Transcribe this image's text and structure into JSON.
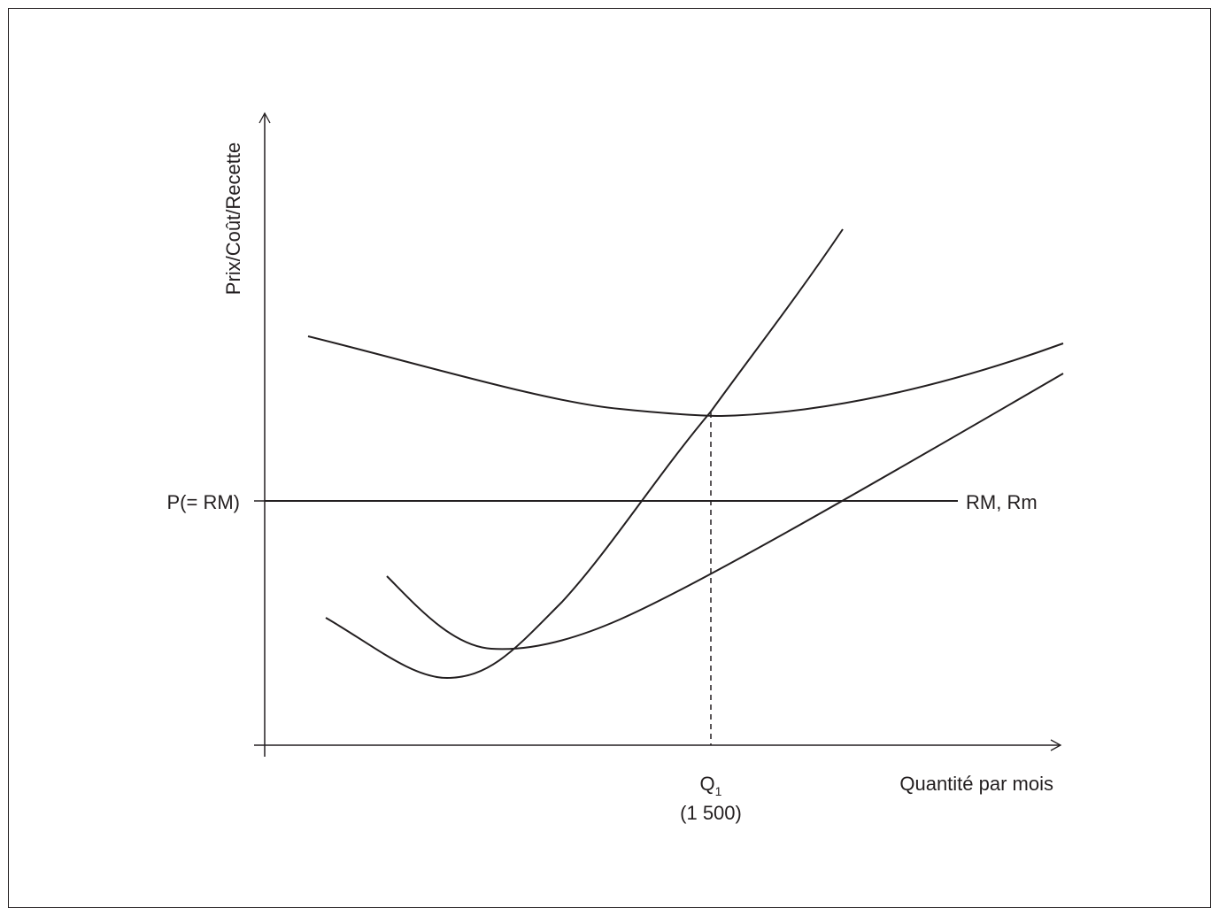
{
  "labels": {
    "y_axis": "Prix/Coût/Recette",
    "x_axis": "Quantité par mois",
    "price_level": "P(= RM)",
    "revenue_line": "RM, Rm",
    "q_letter": "Q",
    "q_subscript": "1",
    "q_value": "(1 500)"
  },
  "colors": {
    "ink": "#231f20",
    "background": "#ffffff"
  }
}
